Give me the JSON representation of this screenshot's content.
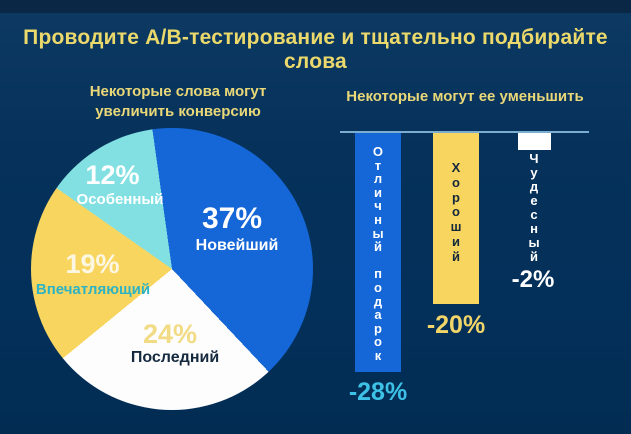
{
  "title": "Проводите А/В-тестирование и тщательно подбирайте слова",
  "pie_section": {
    "heading": "Некоторые слова могут\nувеличить конверсию",
    "slices": [
      {
        "pct": "37%",
        "name": "Новейший"
      },
      {
        "pct": "24%",
        "name": "Последний"
      },
      {
        "pct": "19%",
        "name": "Впечатляющий"
      },
      {
        "pct": "12%",
        "name": "Особенный"
      }
    ]
  },
  "bar_section": {
    "heading": "Некоторые могут ее уменьшить",
    "bars": [
      {
        "word": "Отличный подарок",
        "label": "-28%"
      },
      {
        "word": "Хороший",
        "label": "-20%"
      },
      {
        "word": "Чудесный",
        "label": "-2%"
      }
    ]
  },
  "colors": {
    "background": "#04315a",
    "top_strip": "#0a2746",
    "title_text": "#ecd96b",
    "pie_blue": "#1566d6",
    "pie_white": "#fdfdfd",
    "pie_yellow": "#f8d55f",
    "pie_cyan": "#82e0e2",
    "value_cyan": "#3ec1e6",
    "value_yellow": "#f2d569",
    "dark_label": "#15293e",
    "teal_label": "#2fb3c3",
    "baseline": "#7aadd0"
  },
  "chart_data": [
    {
      "type": "pie",
      "title": "Некоторые слова могут увеличить конверсию",
      "labels": [
        "Новейший",
        "Последний",
        "Впечатляющий",
        "Особенный"
      ],
      "values": [
        37,
        24,
        19,
        12
      ],
      "unit": "%",
      "colors": [
        "#1566d6",
        "#fdfdfd",
        "#f8d55f",
        "#82e0e2"
      ],
      "start_angle_deg": -8,
      "direction": "clockwise",
      "legend_position": "none"
    },
    {
      "type": "bar",
      "title": "Некоторые могут ее уменьшить",
      "categories": [
        "Отличный подарок",
        "Хороший",
        "Чудесный"
      ],
      "values": [
        -28,
        -20,
        -2
      ],
      "unit": "%",
      "colors": [
        "#1566d6",
        "#f8d55f",
        "#ffffff"
      ],
      "baseline": 0,
      "ylim": [
        -30,
        0
      ],
      "grid": false,
      "legend_position": "none"
    }
  ]
}
